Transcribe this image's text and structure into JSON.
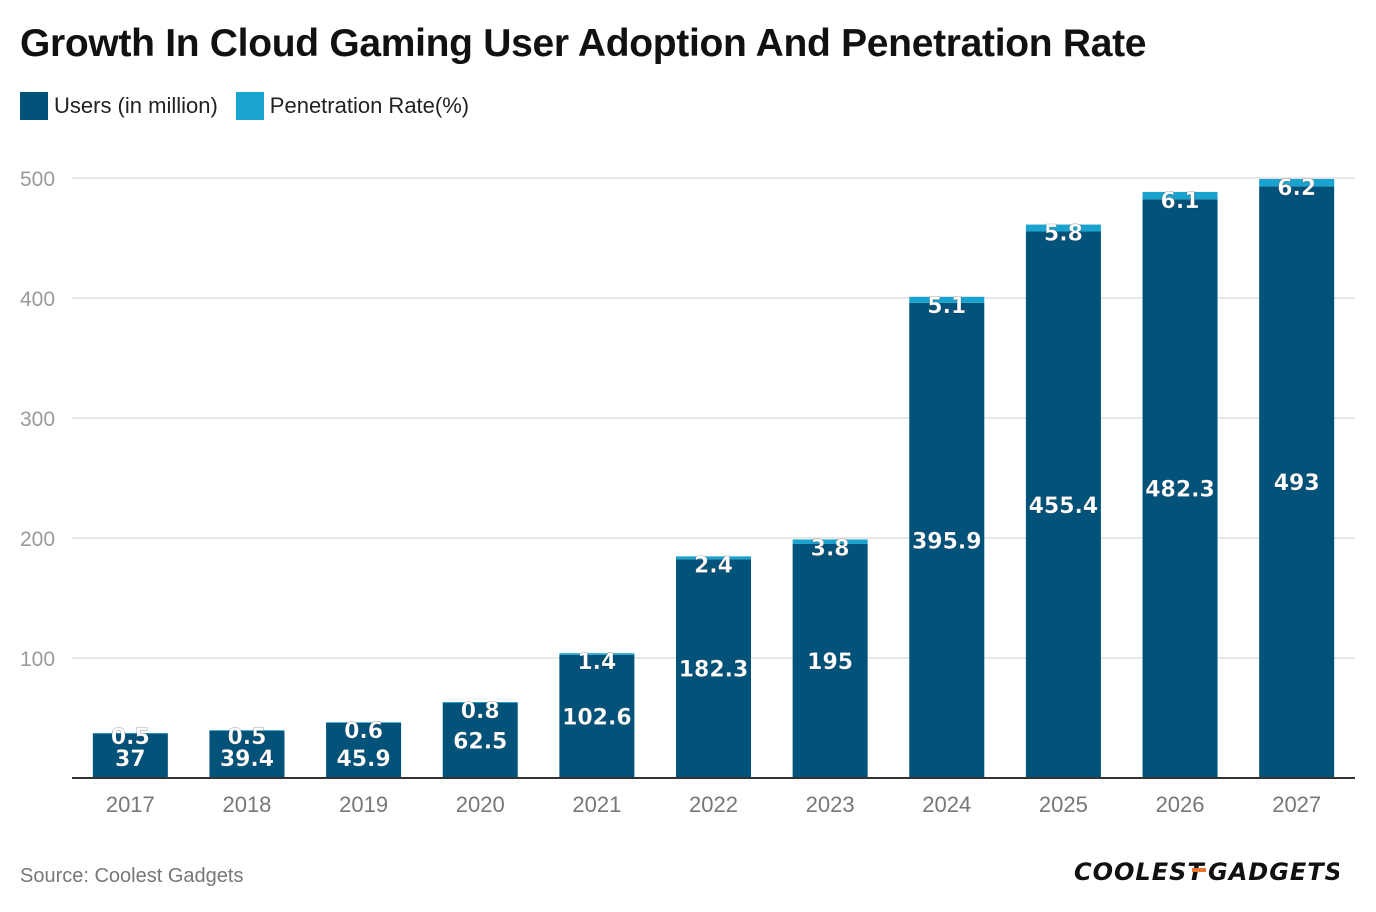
{
  "title": "Growth In Cloud Gaming User Adoption And Penetration Rate",
  "source": "Source: Coolest Gadgets",
  "brand": {
    "part1": "COOLEST",
    "part2": "GADGETS",
    "accent_color": "#e8762c"
  },
  "colors": {
    "users": "#02527a",
    "penetration": "#1ba3cf",
    "grid": "#e0e0e0",
    "axis": "#333333",
    "tick_text": "#9a9a9a",
    "label_text": "#ffffff"
  },
  "chart_data": {
    "type": "bar",
    "stacked": true,
    "title": "Growth In Cloud Gaming User Adoption And Penetration Rate",
    "categories": [
      "2017",
      "2018",
      "2019",
      "2020",
      "2021",
      "2022",
      "2023",
      "2024",
      "2025",
      "2026",
      "2027"
    ],
    "series": [
      {
        "name": "Users (in million)",
        "values": [
          37,
          39.4,
          45.9,
          62.5,
          102.6,
          182.3,
          195,
          395.9,
          455.4,
          482.3,
          493
        ]
      },
      {
        "name": "Penetration Rate(%)",
        "values": [
          0.5,
          0.5,
          0.6,
          0.8,
          1.4,
          2.4,
          3.8,
          5.1,
          5.8,
          6.1,
          6.2
        ]
      }
    ],
    "value_labels": {
      "users": [
        "37",
        "39.4",
        "45.9",
        "62.5",
        "102.6",
        "182.3",
        "195",
        "395.9",
        "455.4",
        "482.3",
        "493"
      ],
      "penetration": [
        "0.5",
        "0.5",
        "0.6",
        "0.8",
        "1.4",
        "2.4",
        "3.8",
        "5.1",
        "5.8",
        "6.1",
        "6.2"
      ]
    },
    "y_ticks": [
      100,
      200,
      300,
      400,
      500
    ],
    "y_tick_labels": [
      "100",
      "200",
      "300",
      "400",
      "500"
    ],
    "ylim": [
      0,
      500
    ],
    "xlabel": "",
    "ylabel": "",
    "grid": true,
    "legend_position": "top-left"
  }
}
